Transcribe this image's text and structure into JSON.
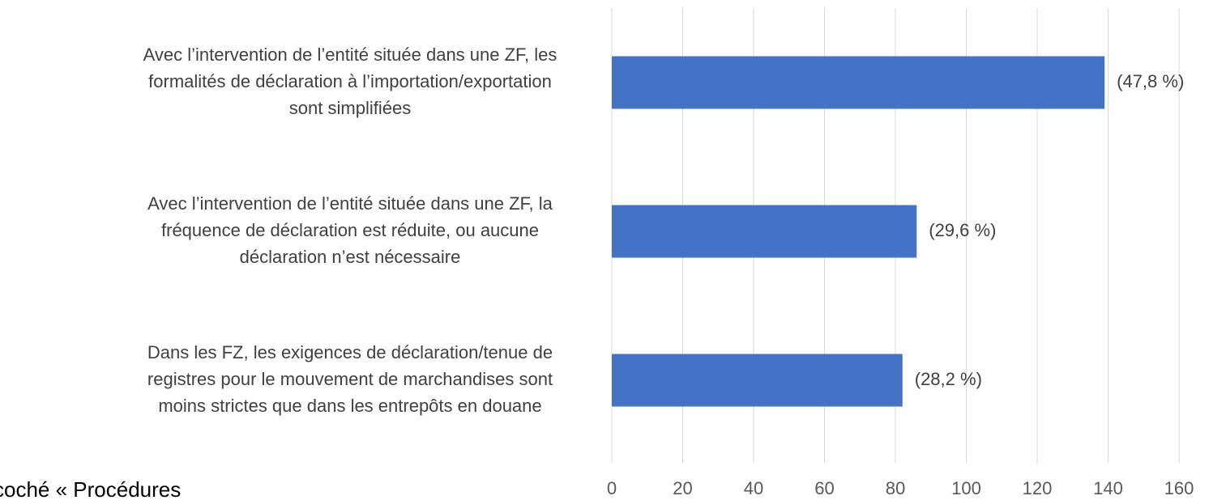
{
  "chart_data": {
    "type": "barh",
    "categories": [
      [
        "Avec l’intervention de l’entité située dans une ZF, les",
        "formalités de déclaration à l’importation/exportation",
        "sont simplifiées"
      ],
      [
        "Avec l’intervention de l’entité située dans une ZF, la",
        "fréquence de déclaration est réduite, ou aucune",
        "déclaration n’est nécessaire"
      ],
      [
        "Dans les FZ, les exigences de déclaration/tenue de",
        "registres pour le mouvement de marchandises sont",
        "moins strictes que dans les entrepôts en douane"
      ]
    ],
    "values": [
      139,
      86,
      82
    ],
    "share_labels": [
      "(47,8 %)",
      "(29,6 %)",
      "(28,2 %)"
    ],
    "color": "#4472c4",
    "xlim": [
      0,
      160
    ],
    "xticks": [
      0,
      20,
      40,
      60,
      80,
      100,
      120,
      140,
      160
    ],
    "grid": true,
    "annotation": "coché « Procédures"
  }
}
